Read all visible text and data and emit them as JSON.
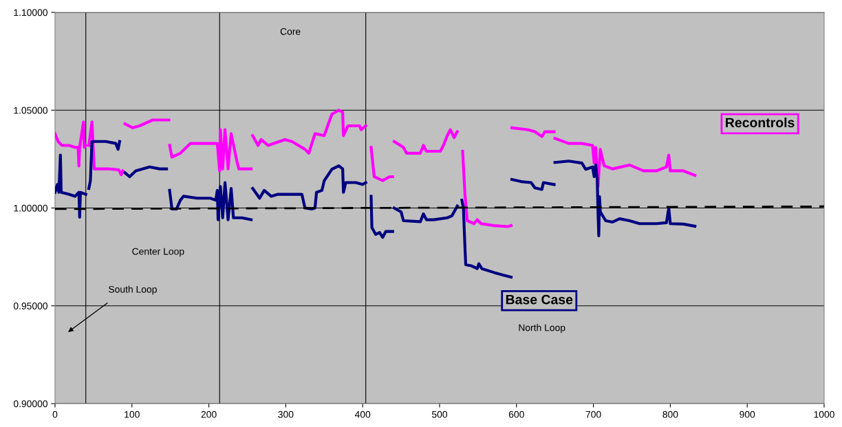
{
  "chart_data": {
    "type": "line",
    "xlim": [
      0,
      1000
    ],
    "xticks": [
      0,
      100,
      200,
      300,
      400,
      500,
      600,
      700,
      800,
      900,
      1000
    ],
    "ylim": [
      0.9,
      1.1
    ],
    "yticks": [
      {
        "value": 0.9,
        "label": "0.90000"
      },
      {
        "value": 0.95,
        "label": "0.95000"
      },
      {
        "value": 1.0,
        "label": "1.00000"
      },
      {
        "value": 1.05,
        "label": "1.05000"
      },
      {
        "value": 1.1,
        "label": "1.10000"
      }
    ],
    "grid": "y",
    "legend": false,
    "series": [
      {
        "name": "Recontrols",
        "color": "#ff00ff",
        "x": [
          0,
          4,
          9,
          18,
          26,
          30,
          31,
          32,
          37,
          38,
          40,
          null,
          44,
          48,
          51,
          70,
          83,
          86,
          88,
          null,
          91,
          101,
          110,
          127,
          148,
          null,
          149,
          152,
          163,
          176,
          193,
          211,
          214,
          215,
          218,
          221,
          225,
          229,
          237,
          239,
          255,
          null,
          257,
          264,
          268,
          277,
          299,
          308,
          325,
          330,
          338,
          350,
          360,
          369,
          374,
          375,
          381,
          396,
          398,
          404,
          null,
          411,
          415,
          426,
          435,
          439,
          null,
          441,
          453,
          457,
          475,
          479,
          483,
          501,
          505,
          510,
          514,
          519,
          523,
          null,
          530,
          533,
          536,
          545,
          549,
          554,
          571,
          589,
          593,
          null,
          594,
          615,
          624,
          633,
          637,
          649,
          null,
          650,
          668,
          685,
          699,
          701,
          703,
          706,
          709,
          714,
          725,
          747,
          765,
          782,
          795,
          798,
          800,
          817,
          832
        ],
        "values": [
          1.038,
          1.034,
          1.032,
          1.032,
          1.031,
          1.031,
          1.0215,
          1.031,
          1.044,
          1.031,
          1.032,
          null,
          1.032,
          1.044,
          1.02,
          1.02,
          1.0195,
          1.017,
          1.019,
          null,
          1.043,
          1.041,
          1.042,
          1.045,
          1.045,
          null,
          1.032,
          1.026,
          1.028,
          1.033,
          1.033,
          1.033,
          1.019,
          1.04,
          1.02,
          1.04,
          1.02,
          1.038,
          1.023,
          1.02,
          1.02,
          null,
          1.037,
          1.032,
          1.035,
          1.032,
          1.035,
          1.034,
          1.03,
          1.028,
          1.038,
          1.037,
          1.048,
          1.05,
          1.049,
          1.037,
          1.042,
          1.042,
          1.04,
          1.042,
          null,
          1.031,
          1.016,
          1.014,
          1.016,
          1.016,
          null,
          1.034,
          1.031,
          1.028,
          1.028,
          1.032,
          1.029,
          1.029,
          1.032,
          1.037,
          1.04,
          1.036,
          1.039,
          null,
          1.029,
          1.007,
          0.9935,
          0.992,
          0.994,
          0.992,
          0.991,
          0.9905,
          0.991,
          null,
          1.041,
          1.04,
          1.039,
          1.0365,
          1.039,
          1.039,
          null,
          1.0356,
          1.033,
          1.033,
          1.032,
          1.023,
          1.031,
          1.011,
          1.03,
          1.0216,
          1.02,
          1.022,
          1.019,
          1.019,
          1.021,
          1.027,
          1.019,
          1.019,
          1.0167
        ]
      },
      {
        "name": "Base Case",
        "color": "#000080",
        "x": [
          0,
          3,
          5,
          7,
          8,
          18,
          26,
          31,
          32,
          33,
          40,
          null,
          44,
          46,
          48,
          66,
          79,
          82,
          84,
          null,
          91,
          97,
          105,
          123,
          136,
          145,
          null,
          149,
          152,
          158,
          163,
          167,
          185,
          202,
          209,
          211,
          212,
          215,
          218,
          221,
          225,
          229,
          232,
          243,
          255,
          null,
          257,
          266,
          272,
          281,
          290,
          299,
          321,
          325,
          334,
          338,
          340,
          347,
          350,
          360,
          369,
          374,
          375,
          378,
          391,
          400,
          404,
          null,
          411,
          412,
          417,
          422,
          426,
          430,
          439,
          null,
          441,
          450,
          453,
          475,
          479,
          483,
          492,
          510,
          516,
          523,
          null,
          529,
          531,
          533,
          534,
          541,
          549,
          551,
          555,
          571,
          585,
          593,
          null,
          594,
          606,
          619,
          624,
          633,
          635,
          649,
          null,
          650,
          668,
          685,
          690,
          699,
          701,
          703,
          705,
          706,
          707,
          708,
          709,
          716,
          725,
          734,
          747,
          760,
          782,
          795,
          798,
          800,
          817,
          832
        ],
        "values": [
          1.008,
          1.012,
          1.008,
          1.027,
          1.008,
          1.007,
          1.006,
          1.008,
          0.9953,
          1.008,
          1.007,
          null,
          1.01,
          1.014,
          1.034,
          1.034,
          1.033,
          1.03,
          1.034,
          null,
          1.018,
          1.016,
          1.019,
          1.021,
          1.02,
          1.02,
          null,
          1.009,
          0.9995,
          0.9995,
          1.004,
          1.006,
          1.005,
          1.005,
          1.004,
          1.009,
          0.994,
          1.011,
          0.995,
          1.013,
          0.994,
          1.01,
          0.995,
          0.995,
          0.994,
          null,
          1.01,
          1.005,
          1.009,
          1.006,
          1.007,
          1.007,
          1.007,
          1.0,
          0.9995,
          1.0,
          1.008,
          1.009,
          1.0139,
          1.0198,
          1.0216,
          1.02,
          1.008,
          1.013,
          1.013,
          1.012,
          1.013,
          null,
          1.006,
          0.99,
          0.9865,
          0.9875,
          0.985,
          0.988,
          0.988,
          null,
          1.0,
          0.998,
          0.9935,
          0.993,
          0.997,
          0.994,
          0.994,
          0.995,
          0.996,
          1.001,
          null,
          1.004,
          1.0,
          0.98,
          0.971,
          0.9705,
          0.969,
          0.9715,
          0.969,
          0.967,
          0.9655,
          0.9647,
          null,
          1.0146,
          1.0135,
          1.013,
          1.0103,
          1.0095,
          1.013,
          1.012,
          null,
          1.0233,
          1.024,
          1.023,
          1.0198,
          1.021,
          1.016,
          1.022,
          1.015,
          0.998,
          0.9858,
          1.0058,
          0.998,
          0.9935,
          0.9928,
          0.9945,
          0.9935,
          0.992,
          0.992,
          0.9925,
          1.0,
          0.992,
          0.9918,
          0.9907
        ]
      },
      {
        "color": "#000000",
        "line_style": "dashed",
        "x": [
          0,
          1000
        ],
        "values": [
          0.9995,
          1.0008
        ]
      }
    ],
    "ref_lines": [
      {
        "axis": "x",
        "value": 40,
        "color": "#000000"
      },
      {
        "axis": "x",
        "value": 214,
        "color": "#000000"
      },
      {
        "axis": "x",
        "value": 404,
        "color": "#000000"
      }
    ],
    "annotations": [
      "Core",
      "Center Loop",
      "North Loop",
      "South Loop"
    ]
  }
}
